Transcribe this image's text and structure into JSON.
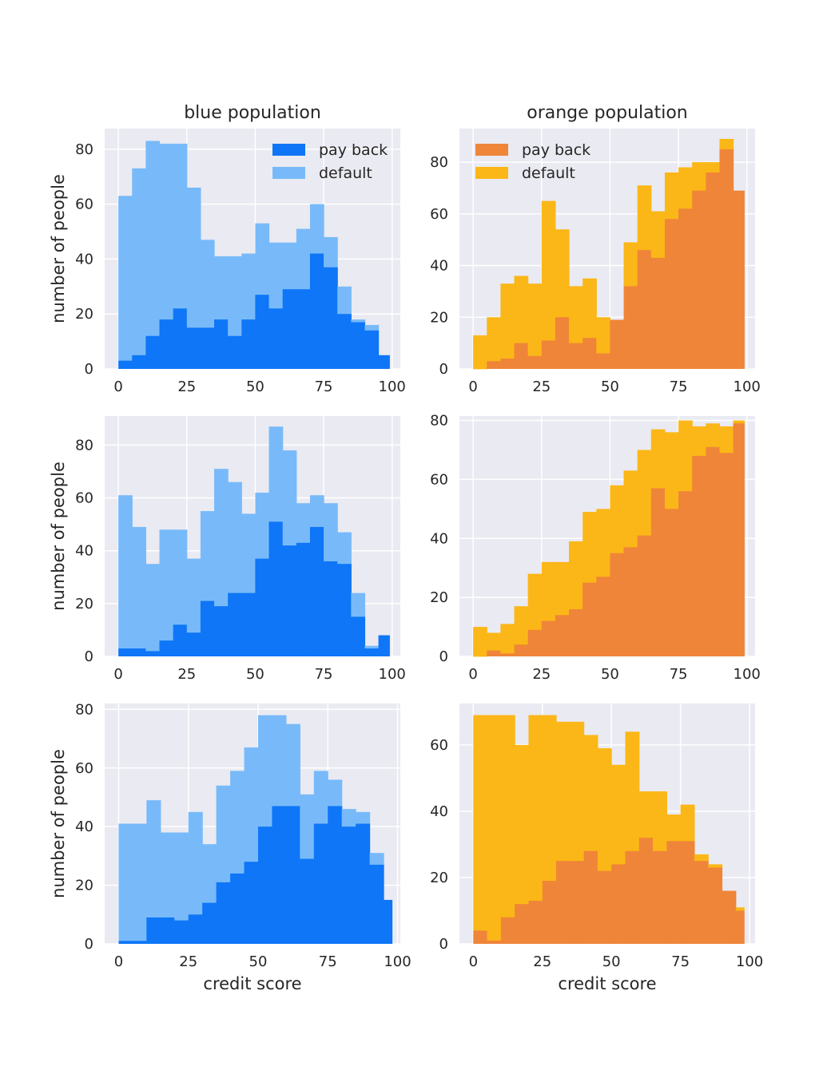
{
  "figure": {
    "column_titles": [
      "blue population",
      "orange population"
    ],
    "ylabel": "number of people",
    "xlabel": "credit score",
    "legend_labels": {
      "pay_back": "pay back",
      "default": "default"
    }
  },
  "colors": {
    "blue_pay_back": "#0e76f7",
    "blue_default": "#78baf9",
    "orange_pay_back": "#ef8539",
    "orange_default": "#fbb717",
    "panel_bg": "#eaeaf2",
    "grid": "#ffffff"
  },
  "chart_data": [
    {
      "type": "bar",
      "stacked": true,
      "row": 0,
      "col": 0,
      "population": "blue",
      "title": "blue population",
      "ylabel": "number of people",
      "xlabel": "",
      "xlim": [
        -5,
        103
      ],
      "ylim": [
        0,
        87.5
      ],
      "xticks": [
        0,
        25,
        50,
        75,
        100
      ],
      "yticks": [
        0,
        20,
        40,
        60,
        80
      ],
      "bin_edges": [
        0,
        5,
        10,
        15,
        20,
        25,
        30,
        35,
        40,
        45,
        50,
        55,
        60,
        65,
        70,
        75,
        80,
        85,
        90,
        95,
        99
      ],
      "legend": "upper-right",
      "series": [
        {
          "name": "pay back",
          "values": [
            3,
            5,
            12,
            18,
            22,
            15,
            15,
            18,
            12,
            18,
            27,
            22,
            29,
            29,
            42,
            37,
            20,
            17,
            14,
            5
          ]
        },
        {
          "name": "default",
          "values": [
            60,
            68,
            71,
            64,
            60,
            51,
            32,
            23,
            29,
            24,
            26,
            24,
            17,
            22,
            18,
            11,
            10,
            1,
            2,
            0
          ]
        }
      ]
    },
    {
      "type": "bar",
      "stacked": true,
      "row": 0,
      "col": 1,
      "population": "orange",
      "title": "orange population",
      "ylabel": "",
      "xlabel": "",
      "xlim": [
        -5,
        103
      ],
      "ylim": [
        0,
        93
      ],
      "xticks": [
        0,
        25,
        50,
        75,
        100
      ],
      "yticks": [
        0,
        20,
        40,
        60,
        80
      ],
      "bin_edges": [
        0,
        5,
        10,
        15,
        20,
        25,
        30,
        35,
        40,
        45,
        50,
        55,
        60,
        65,
        70,
        75,
        80,
        85,
        90,
        95,
        99
      ],
      "legend": "upper-left",
      "series": [
        {
          "name": "pay back",
          "values": [
            0,
            3,
            4,
            10,
            5,
            11,
            20,
            10,
            12,
            6,
            19,
            32,
            46,
            43,
            58,
            62,
            69,
            76,
            85,
            69
          ]
        },
        {
          "name": "default",
          "values": [
            13,
            17,
            29,
            26,
            28,
            54,
            34,
            22,
            23,
            14,
            0,
            17,
            25,
            18,
            18,
            16,
            11,
            4,
            4,
            0
          ]
        }
      ]
    },
    {
      "type": "bar",
      "stacked": true,
      "row": 1,
      "col": 0,
      "population": "blue",
      "title": "",
      "ylabel": "number of people",
      "xlabel": "",
      "xlim": [
        -5,
        103
      ],
      "ylim": [
        0,
        91
      ],
      "xticks": [
        0,
        25,
        50,
        75,
        100
      ],
      "yticks": [
        0,
        20,
        40,
        60,
        80
      ],
      "bin_edges": [
        0,
        5,
        10,
        15,
        20,
        25,
        30,
        35,
        40,
        45,
        50,
        55,
        60,
        65,
        70,
        75,
        80,
        85,
        90,
        95,
        99
      ],
      "series": [
        {
          "name": "pay back",
          "values": [
            3,
            3,
            2,
            6,
            12,
            9,
            21,
            19,
            24,
            24,
            37,
            51,
            42,
            43,
            49,
            36,
            35,
            15,
            3,
            8
          ]
        },
        {
          "name": "default",
          "values": [
            58,
            46,
            33,
            42,
            36,
            28,
            34,
            52,
            42,
            30,
            25,
            36,
            36,
            15,
            12,
            22,
            12,
            9,
            1,
            0
          ]
        }
      ]
    },
    {
      "type": "bar",
      "stacked": true,
      "row": 1,
      "col": 1,
      "population": "orange",
      "title": "",
      "ylabel": "",
      "xlabel": "",
      "xlim": [
        -5,
        103
      ],
      "ylim": [
        0,
        81.5
      ],
      "xticks": [
        0,
        25,
        50,
        75,
        100
      ],
      "yticks": [
        0,
        20,
        40,
        60,
        80
      ],
      "bin_edges": [
        0,
        5,
        10,
        15,
        20,
        25,
        30,
        35,
        40,
        45,
        50,
        55,
        60,
        65,
        70,
        75,
        80,
        85,
        90,
        95,
        99
      ],
      "series": [
        {
          "name": "pay back",
          "values": [
            0,
            2,
            1,
            4,
            9,
            12,
            14,
            16,
            25,
            27,
            35,
            37,
            41,
            57,
            50,
            56,
            68,
            71,
            69,
            79
          ]
        },
        {
          "name": "default",
          "values": [
            10,
            6,
            10,
            13,
            19,
            20,
            18,
            23,
            24,
            23,
            23,
            26,
            29,
            20,
            26,
            24,
            10,
            8,
            9,
            1
          ]
        }
      ]
    },
    {
      "type": "bar",
      "stacked": true,
      "row": 2,
      "col": 0,
      "population": "blue",
      "title": "",
      "ylabel": "number of people",
      "xlabel": "credit score",
      "xlim": [
        -5,
        101
      ],
      "ylim": [
        0,
        82
      ],
      "xticks": [
        0,
        25,
        50,
        75,
        100
      ],
      "yticks": [
        0,
        20,
        40,
        60,
        80
      ],
      "bin_edges": [
        0,
        5,
        10,
        15,
        20,
        25,
        30,
        35,
        40,
        45,
        50,
        55,
        60,
        65,
        70,
        75,
        80,
        85,
        90,
        95,
        98
      ],
      "series": [
        {
          "name": "pay back",
          "values": [
            1,
            1,
            9,
            9,
            8,
            10,
            14,
            21,
            24,
            28,
            40,
            47,
            47,
            29,
            41,
            47,
            40,
            41,
            27,
            15
          ]
        },
        {
          "name": "default",
          "values": [
            40,
            40,
            40,
            29,
            30,
            35,
            20,
            33,
            35,
            39,
            38,
            31,
            28,
            22,
            18,
            9,
            6,
            4,
            4,
            0
          ]
        }
      ]
    },
    {
      "type": "bar",
      "stacked": true,
      "row": 2,
      "col": 1,
      "population": "orange",
      "title": "",
      "ylabel": "",
      "xlabel": "credit score",
      "xlim": [
        -5,
        102
      ],
      "ylim": [
        0,
        72.5
      ],
      "xticks": [
        0,
        25,
        50,
        75,
        100
      ],
      "yticks": [
        0,
        20,
        40,
        60
      ],
      "bin_edges": [
        0,
        5,
        10,
        15,
        20,
        25,
        30,
        35,
        40,
        45,
        50,
        55,
        60,
        65,
        70,
        75,
        80,
        85,
        90,
        95,
        98
      ],
      "series": [
        {
          "name": "pay back",
          "values": [
            4,
            1,
            8,
            12,
            13,
            19,
            25,
            25,
            28,
            22,
            24,
            28,
            32,
            28,
            31,
            31,
            25,
            23,
            16,
            10
          ]
        },
        {
          "name": "default",
          "values": [
            65,
            68,
            61,
            48,
            56,
            50,
            42,
            42,
            35,
            37,
            30,
            36,
            14,
            18,
            8,
            11,
            2,
            1,
            0,
            1
          ]
        }
      ]
    }
  ]
}
